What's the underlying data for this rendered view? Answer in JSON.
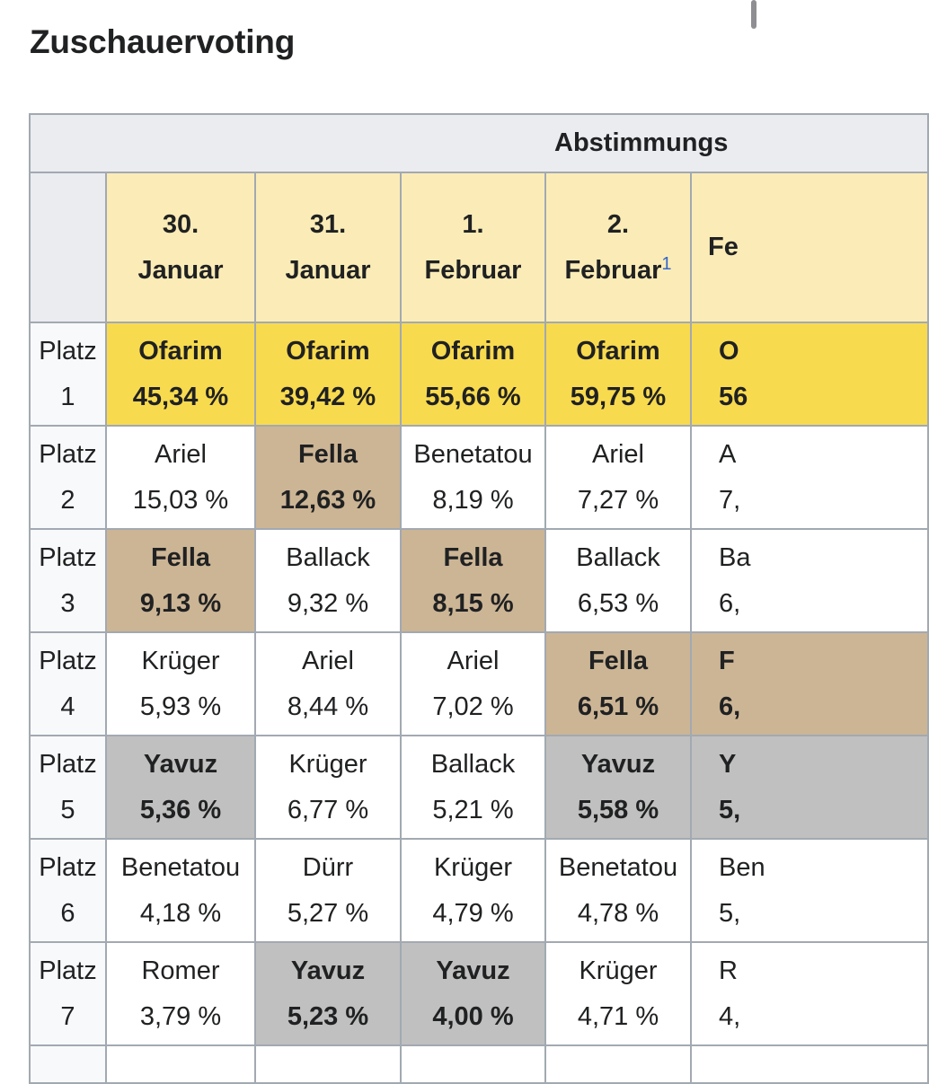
{
  "heading": "Zuschauervoting",
  "table": {
    "group_header": "Abstimmungs",
    "dates": [
      {
        "day": "30.",
        "month": "Januar",
        "note": ""
      },
      {
        "day": "31.",
        "month": "Januar",
        "note": ""
      },
      {
        "day": "1.",
        "month": "Februar",
        "note": ""
      },
      {
        "day": "2.",
        "month": "Februar",
        "note": "1"
      },
      {
        "day": "",
        "month": "Fe",
        "note": ""
      }
    ],
    "rows": [
      {
        "label": "Platz",
        "num": "1",
        "cells": [
          {
            "name": "Ofarim",
            "pct": "45,34 %",
            "style": "gold"
          },
          {
            "name": "Ofarim",
            "pct": "39,42 %",
            "style": "gold"
          },
          {
            "name": "Ofarim",
            "pct": "55,66 %",
            "style": "gold"
          },
          {
            "name": "Ofarim",
            "pct": "59,75 %",
            "style": "gold"
          },
          {
            "name": "O",
            "pct": "56",
            "style": "gold"
          }
        ]
      },
      {
        "label": "Platz",
        "num": "2",
        "cells": [
          {
            "name": "Ariel",
            "pct": "15,03 %",
            "style": "plain"
          },
          {
            "name": "Fella",
            "pct": "12,63 %",
            "style": "tan"
          },
          {
            "name": "Benetatou",
            "pct": "8,19 %",
            "style": "plain"
          },
          {
            "name": "Ariel",
            "pct": "7,27 %",
            "style": "plain"
          },
          {
            "name": "A",
            "pct": "7,",
            "style": "plain"
          }
        ]
      },
      {
        "label": "Platz",
        "num": "3",
        "cells": [
          {
            "name": "Fella",
            "pct": "9,13 %",
            "style": "tan"
          },
          {
            "name": "Ballack",
            "pct": "9,32 %",
            "style": "plain"
          },
          {
            "name": "Fella",
            "pct": "8,15 %",
            "style": "tan"
          },
          {
            "name": "Ballack",
            "pct": "6,53 %",
            "style": "plain"
          },
          {
            "name": "Ba",
            "pct": "6,",
            "style": "plain"
          }
        ]
      },
      {
        "label": "Platz",
        "num": "4",
        "cells": [
          {
            "name": "Krüger",
            "pct": "5,93 %",
            "style": "plain"
          },
          {
            "name": "Ariel",
            "pct": "8,44 %",
            "style": "plain"
          },
          {
            "name": "Ariel",
            "pct": "7,02 %",
            "style": "plain"
          },
          {
            "name": "Fella",
            "pct": "6,51 %",
            "style": "tan"
          },
          {
            "name": "F",
            "pct": "6,",
            "style": "tan"
          }
        ]
      },
      {
        "label": "Platz",
        "num": "5",
        "cells": [
          {
            "name": "Yavuz",
            "pct": "5,36 %",
            "style": "grey"
          },
          {
            "name": "Krüger",
            "pct": "6,77 %",
            "style": "plain"
          },
          {
            "name": "Ballack",
            "pct": "5,21 %",
            "style": "plain"
          },
          {
            "name": "Yavuz",
            "pct": "5,58 %",
            "style": "grey"
          },
          {
            "name": "Y",
            "pct": "5,",
            "style": "grey"
          }
        ]
      },
      {
        "label": "Platz",
        "num": "6",
        "cells": [
          {
            "name": "Benetatou",
            "pct": "4,18 %",
            "style": "plain"
          },
          {
            "name": "Dürr",
            "pct": "5,27 %",
            "style": "plain"
          },
          {
            "name": "Krüger",
            "pct": "4,79 %",
            "style": "plain"
          },
          {
            "name": "Benetatou",
            "pct": "4,78 %",
            "style": "plain"
          },
          {
            "name": "Ben",
            "pct": "5,",
            "style": "plain"
          }
        ]
      },
      {
        "label": "Platz",
        "num": "7",
        "cells": [
          {
            "name": "Romer",
            "pct": "3,79 %",
            "style": "plain"
          },
          {
            "name": "Yavuz",
            "pct": "5,23 %",
            "style": "grey"
          },
          {
            "name": "Yavuz",
            "pct": "4,00 %",
            "style": "grey"
          },
          {
            "name": "Krüger",
            "pct": "4,71 %",
            "style": "plain"
          },
          {
            "name": "R",
            "pct": "4,",
            "style": "plain"
          }
        ]
      }
    ],
    "colors": {
      "header_bg": "#eaecf0",
      "date_bg": "#fbecb7",
      "first_place": "#f8da4e",
      "highlight_tan": "#ccb595",
      "highlight_grey": "#c0c0c0",
      "border": "#a2a9b1"
    }
  }
}
